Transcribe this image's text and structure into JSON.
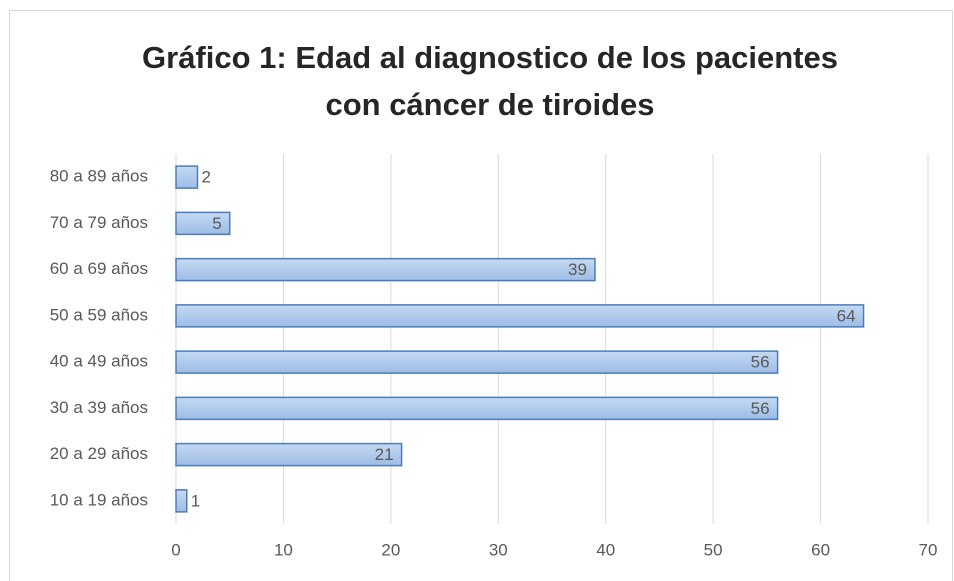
{
  "chart_data": {
    "type": "bar",
    "orientation": "horizontal",
    "title": [
      "Gráfico 1: Edad al diagnostico de los pacientes",
      "con cáncer de tiroides"
    ],
    "categories": [
      "10 a 19 años",
      "20 a 29 años",
      "30 a 39 años",
      "40 a 49 años",
      "50 a 59 años",
      "60 a 69 años",
      "70 a 79 años",
      "80 a 89 años"
    ],
    "values": [
      1,
      21,
      56,
      56,
      64,
      39,
      5,
      2
    ],
    "color": "#a9c4eb",
    "edge_color": "#4a7ebb",
    "xlim": [
      0,
      70
    ],
    "xticks": [
      0,
      10,
      20,
      30,
      40,
      50,
      60,
      70
    ],
    "grid": true
  }
}
